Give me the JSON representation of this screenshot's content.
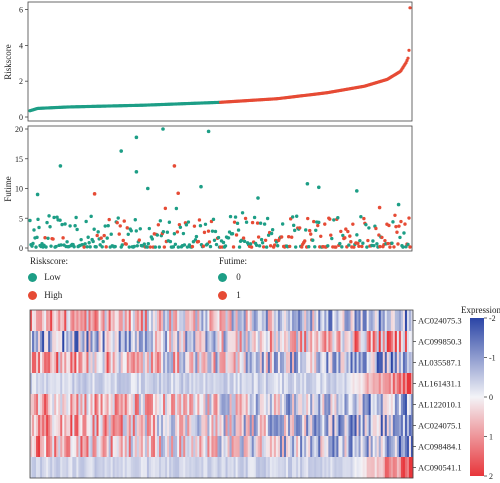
{
  "colors": {
    "low": "#1d9e86",
    "high": "#e64b35",
    "text": "#222222",
    "axis": "#444444"
  },
  "legend": {
    "riskscore_title": "Riskscore:",
    "low_label": "Low",
    "high_label": "High",
    "futime_title": "Futime:",
    "status0_label": "0",
    "status1_label": "1"
  },
  "chart_data": [
    {
      "type": "scatter",
      "panel": "riskscore",
      "ylabel": "Riskscore",
      "ylim": [
        0,
        6.2
      ],
      "yticks": [
        0,
        2,
        4,
        6
      ],
      "n_samples": 380,
      "low_count": 190,
      "curve_points": [
        [
          0,
          0.35
        ],
        [
          0.02,
          0.48
        ],
        [
          0.1,
          0.56
        ],
        [
          0.3,
          0.66
        ],
        [
          0.5,
          0.82
        ],
        [
          0.65,
          1.02
        ],
        [
          0.78,
          1.35
        ],
        [
          0.88,
          1.72
        ],
        [
          0.94,
          2.1
        ],
        [
          0.975,
          2.55
        ],
        [
          0.99,
          3.05
        ],
        [
          0.997,
          3.4
        ],
        [
          1.0,
          6.1
        ]
      ],
      "series": [
        {
          "name": "Low",
          "color": "#1d9e86"
        },
        {
          "name": "High",
          "color": "#e64b35"
        }
      ]
    },
    {
      "type": "scatter",
      "panel": "futime",
      "ylabel": "Futime",
      "ylim": [
        0,
        20
      ],
      "yticks": [
        0,
        5,
        10,
        15,
        20
      ],
      "outliers": [
        {
          "rank": 0.28,
          "futime": 18.6,
          "status": 0
        },
        {
          "rank": 0.35,
          "futime": 20.0,
          "status": 0
        },
        {
          "rank": 0.47,
          "futime": 19.6,
          "status": 0
        },
        {
          "rank": 0.24,
          "futime": 16.3,
          "status": 0
        },
        {
          "rank": 0.08,
          "futime": 13.8,
          "status": 0
        },
        {
          "rank": 0.38,
          "futime": 13.8,
          "status": 1
        },
        {
          "rank": 0.28,
          "futime": 12.8,
          "status": 0
        },
        {
          "rank": 0.02,
          "futime": 9.0,
          "status": 0
        },
        {
          "rank": 0.31,
          "futime": 10.0,
          "status": 0
        },
        {
          "rank": 0.39,
          "futime": 9.2,
          "status": 1
        },
        {
          "rank": 0.45,
          "futime": 10.3,
          "status": 0
        },
        {
          "rank": 0.73,
          "futime": 10.8,
          "status": 0
        },
        {
          "rank": 0.76,
          "futime": 10.2,
          "status": 0
        },
        {
          "rank": 0.86,
          "futime": 9.6,
          "status": 0
        },
        {
          "rank": 0.17,
          "futime": 9.1,
          "status": 1
        },
        {
          "rank": 0.92,
          "futime": 6.8,
          "status": 1
        },
        {
          "rank": 0.97,
          "futime": 7.3,
          "status": 0
        },
        {
          "rank": 0.6,
          "futime": 8.4,
          "status": 0
        }
      ]
    },
    {
      "type": "heatmap",
      "panel": "expression",
      "genes": [
        "AC024075.3",
        "AC099850.3",
        "AL035587.1",
        "AL161431.1",
        "AL122010.1",
        "AC024075.1",
        "AC098484.1",
        "AC090541.1"
      ],
      "gene_trend": [
        -1,
        1,
        -1,
        1,
        -1,
        -1,
        -1,
        1
      ],
      "gene_noise": [
        1.2,
        1.3,
        1.3,
        0.7,
        1.2,
        1.2,
        1.2,
        0.6
      ],
      "colorbar_title": "Expression",
      "colorbar_ticks": [
        "-2",
        "-1",
        "0",
        "1",
        "2"
      ],
      "colorbar_values": [
        -2,
        -1,
        0,
        1,
        2
      ],
      "color_low": "#2b45a6",
      "color_mid": "#f3f3f7",
      "color_high": "#e8353a"
    }
  ]
}
